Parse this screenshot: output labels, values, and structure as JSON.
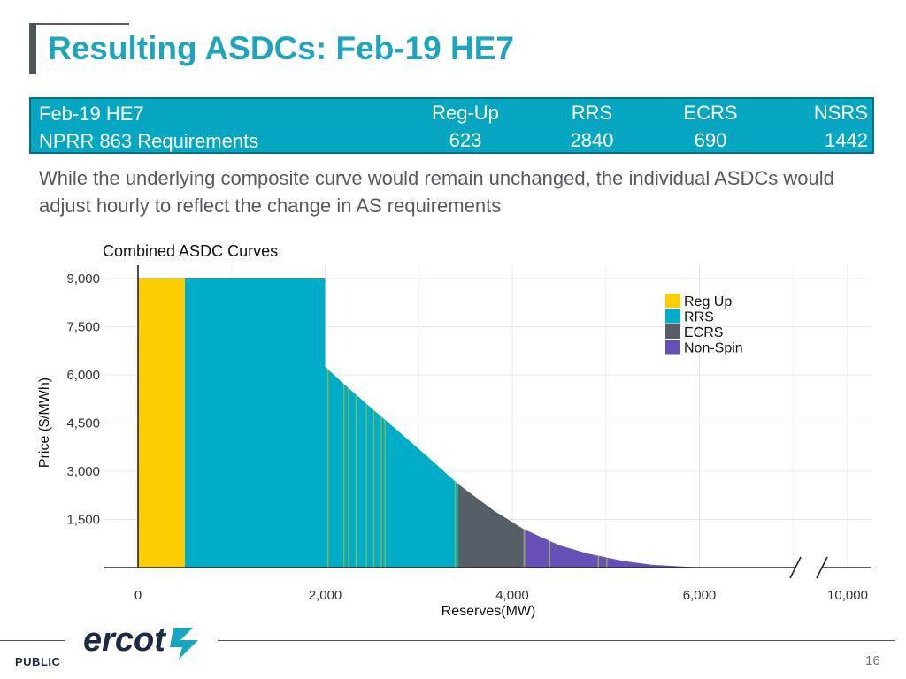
{
  "slide": {
    "title": "Resulting ASDCs: Feb-19 HE7",
    "requirements": {
      "label_line1": "Feb-19 HE7",
      "label_line2": "NPRR 863 Requirements",
      "columns": [
        {
          "name": "Reg-Up",
          "value": "623"
        },
        {
          "name": "RRS",
          "value": "2840"
        },
        {
          "name": "ECRS",
          "value": "690"
        },
        {
          "name": "NSRS",
          "value": "1442"
        }
      ]
    },
    "description": "While the underlying composite curve would remain unchanged, the individual ASDCs would adjust hourly to reflect the change in AS requirements",
    "footer": {
      "public_label": "PUBLIC",
      "logo_text": "ercot",
      "page_number": "16"
    }
  },
  "chart_data": {
    "type": "area",
    "title": "Combined ASDC Curves",
    "xlabel": "Reserves(MW)",
    "ylabel": "Price ($/MWh)",
    "x_ticks": [
      "0",
      "2,000",
      "4,000",
      "6,000",
      "10,000"
    ],
    "y_ticks": [
      "1,500",
      "3,000",
      "4,500",
      "6,000",
      "7,500",
      "9,000"
    ],
    "xlim": [
      0,
      10000
    ],
    "ylim": [
      0,
      9000
    ],
    "x_axis_break": true,
    "grid": true,
    "legend_position": "top-right",
    "series": [
      {
        "name": "Reg Up",
        "color": "#fccc00",
        "segments": [
          [
            0,
            500
          ]
        ]
      },
      {
        "name": "RRS",
        "color": "#00adc6",
        "segments": [
          [
            500,
            3420
          ]
        ]
      },
      {
        "name": "ECRS",
        "color": "#565f66",
        "segments": [
          [
            3420,
            4120
          ]
        ]
      },
      {
        "name": "Non-Spin",
        "color": "#6650b8",
        "segments": [
          [
            4120,
            6050
          ]
        ]
      }
    ],
    "curve": {
      "x": [
        0,
        2000,
        2000,
        2200,
        2500,
        2800,
        3100,
        3420,
        3800,
        4120,
        4500,
        4800,
        5200,
        5500,
        6050
      ],
      "y": [
        9000,
        9000,
        6250,
        5720,
        4950,
        4200,
        3440,
        2600,
        1780,
        1200,
        700,
        440,
        200,
        85,
        0
      ]
    },
    "stripe_marks": {
      "color": "#9ab83a",
      "x": [
        2030,
        2200,
        2250,
        2330,
        2440,
        2520,
        2600,
        2640,
        3390,
        4130,
        4400,
        4920,
        5010
      ]
    }
  }
}
